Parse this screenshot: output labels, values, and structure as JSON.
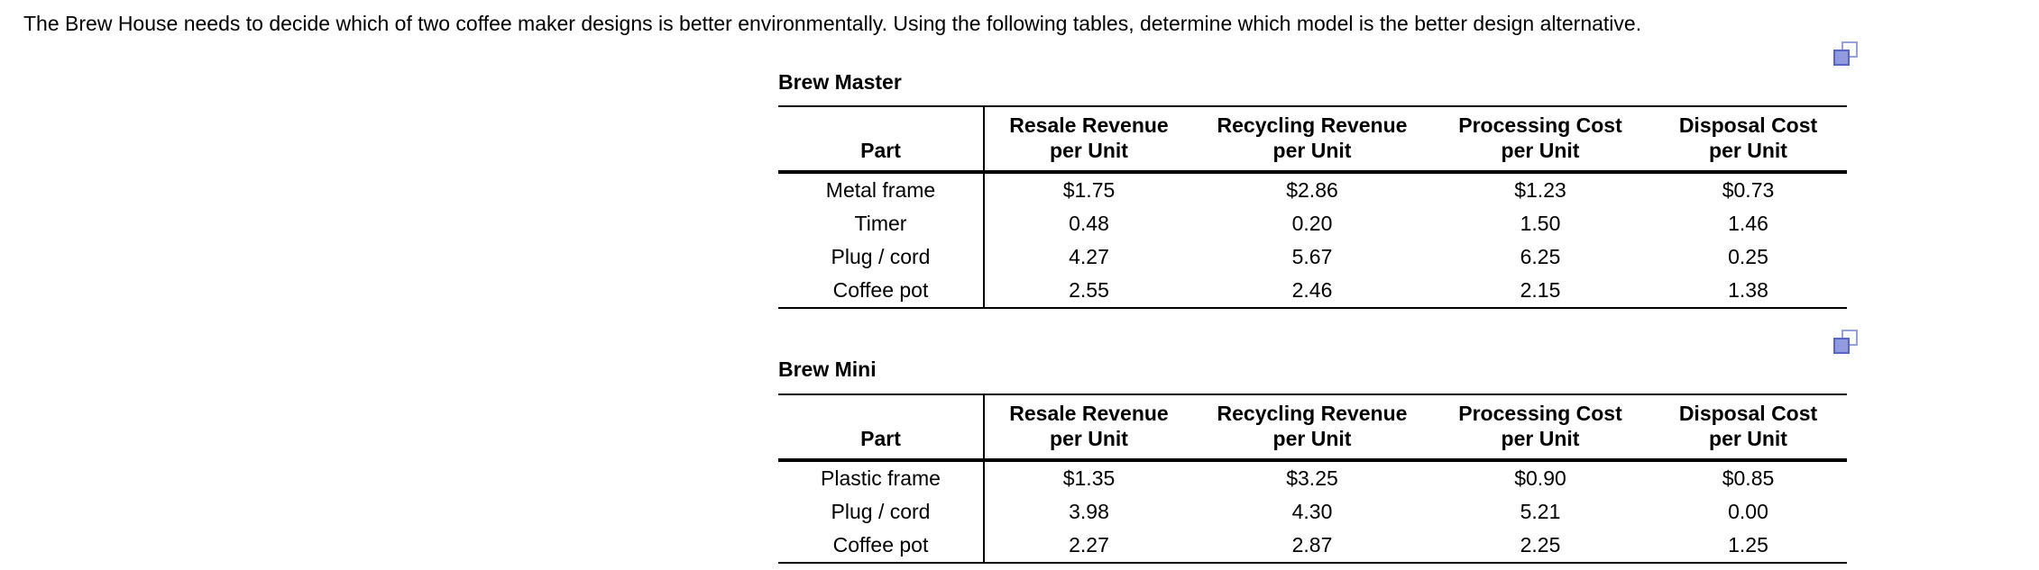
{
  "page": {
    "title": "The Brew House needs to decide which of two coffee maker designs is better environmentally. Using the following tables, determine which model is the better design alternative."
  },
  "icons": {
    "copy_icon_1": "copy-icon",
    "copy_icon_2": "copy-icon"
  },
  "colors": {
    "background": "#ffffff",
    "text": "#000000",
    "table_rule": "#000000",
    "copy_icon_outline": "#5565c8",
    "copy_icon_fill": "#8f9adf",
    "copy_icon_back_outline": "#97a0dc"
  },
  "tables": [
    {
      "caption": "Brew Master",
      "columns": [
        "Part",
        "Resale Revenue\nper Unit",
        "Recycling Revenue\nper Unit",
        "Processing Cost\nper Unit",
        "Disposal Cost\nper Unit"
      ],
      "rows": [
        [
          "Metal frame",
          "$1.75",
          "$2.86",
          "$1.23",
          "$0.73"
        ],
        [
          "Timer",
          "0.48",
          "0.20",
          "1.50",
          "1.46"
        ],
        [
          "Plug / cord",
          "4.27",
          "5.67",
          "6.25",
          "0.25"
        ],
        [
          "Coffee pot",
          "2.55",
          "2.46",
          "2.15",
          "1.38"
        ]
      ]
    },
    {
      "caption": "Brew Mini",
      "columns": [
        "Part",
        "Resale Revenue\nper Unit",
        "Recycling Revenue\nper Unit",
        "Processing Cost\nper Unit",
        "Disposal Cost\nper Unit"
      ],
      "rows": [
        [
          "Plastic frame",
          "$1.35",
          "$3.25",
          "$0.90",
          "$0.85"
        ],
        [
          "Plug / cord",
          "3.98",
          "4.30",
          "5.21",
          "0.00"
        ],
        [
          "Coffee pot",
          "2.27",
          "2.87",
          "2.25",
          "1.25"
        ]
      ]
    }
  ]
}
